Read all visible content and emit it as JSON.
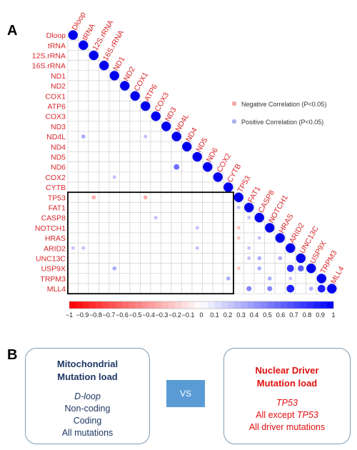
{
  "panel_a_label": "A",
  "panel_b_label": "B",
  "legend": {
    "negative": {
      "label": "Negative Correlation (P<0.05)",
      "color": "#f4aaaa"
    },
    "positive": {
      "label": "Positive Correlation (P<0.05)",
      "color": "#aab4ee"
    }
  },
  "colors": {
    "label_red": "#d8262a",
    "grid": "#cfcfcf",
    "box_border": "#000000"
  },
  "chart_data": {
    "type": "heatmap",
    "variables": [
      "Dloop",
      "tRNA",
      "12S.rRNA",
      "16S.rRNA",
      "ND1",
      "ND2",
      "COX1",
      "ATP6",
      "COX3",
      "ND3",
      "ND4L",
      "ND4",
      "ND5",
      "ND6",
      "COX2",
      "CYTB",
      "TP53",
      "FAT1",
      "CASP8",
      "NOTCH1",
      "HRAS",
      "ARID2",
      "UNC13C",
      "USP9X",
      "TRPM3",
      "MLL4"
    ],
    "display_labels": [
      "Dloop",
      "tRNA",
      "12S.rRNA",
      "16S.rRNA",
      "ND1",
      "ND2",
      "COX1",
      "ATP6",
      "COX3",
      "ND3",
      "ND4L",
      "ND4",
      "ND5",
      "ND6",
      "COX2",
      "CYTB",
      "TP53",
      "FAT1",
      "CASP8",
      "NOTCH1",
      "HRAS",
      "ARID2",
      "UNC13C",
      "USP9X",
      "TRPM3",
      "MLL4"
    ],
    "colorbar_ticks": [
      "−1",
      "−0.9",
      "−0.8",
      "−0.7",
      "−0.6",
      "−0.5",
      "−0.4",
      "−0.3",
      "−0.2",
      "−0.1",
      "0",
      "0.1",
      "0.2",
      "0.3",
      "0.4",
      "0.5",
      "0.6",
      "0.7",
      "0.8",
      "0.9",
      "1"
    ],
    "colorscale_range": [
      -1,
      1
    ],
    "cells": [
      {
        "row": 10,
        "col": 1,
        "r": 0.2
      },
      {
        "row": 10,
        "col": 7,
        "r": 0.15
      },
      {
        "row": 13,
        "col": 10,
        "r": 0.35
      },
      {
        "row": 14,
        "col": 4,
        "r": 0.15
      },
      {
        "row": 16,
        "col": 2,
        "r": -0.2
      },
      {
        "row": 16,
        "col": 7,
        "r": -0.2
      },
      {
        "row": 17,
        "col": 16,
        "r": 0.15
      },
      {
        "row": 18,
        "col": 8,
        "r": 0.15
      },
      {
        "row": 18,
        "col": 17,
        "r": 0.15
      },
      {
        "row": 19,
        "col": 12,
        "r": 0.15
      },
      {
        "row": 19,
        "col": 16,
        "r": -0.15
      },
      {
        "row": 20,
        "col": 16,
        "r": -0.15
      },
      {
        "row": 20,
        "col": 18,
        "r": 0.15
      },
      {
        "row": 21,
        "col": 0,
        "r": 0.15
      },
      {
        "row": 21,
        "col": 1,
        "r": 0.15
      },
      {
        "row": 21,
        "col": 12,
        "r": 0.15
      },
      {
        "row": 21,
        "col": 17,
        "r": 0.15
      },
      {
        "row": 22,
        "col": 17,
        "r": 0.15
      },
      {
        "row": 22,
        "col": 18,
        "r": 0.2
      },
      {
        "row": 22,
        "col": 20,
        "r": 0.2
      },
      {
        "row": 23,
        "col": 4,
        "r": 0.2
      },
      {
        "row": 23,
        "col": 16,
        "r": -0.15
      },
      {
        "row": 23,
        "col": 18,
        "r": 0.2
      },
      {
        "row": 23,
        "col": 21,
        "r": 0.5
      },
      {
        "row": 23,
        "col": 22,
        "r": 0.4
      },
      {
        "row": 24,
        "col": 15,
        "r": 0.2
      },
      {
        "row": 24,
        "col": 19,
        "r": 0.2
      },
      {
        "row": 24,
        "col": 21,
        "r": 0.15
      },
      {
        "row": 25,
        "col": 17,
        "r": 0.3
      },
      {
        "row": 25,
        "col": 19,
        "r": 0.3
      },
      {
        "row": 25,
        "col": 21,
        "r": 0.55
      },
      {
        "row": 25,
        "col": 23,
        "r": 0.2
      },
      {
        "row": 25,
        "col": 24,
        "r": 0.55
      }
    ]
  },
  "left_box": {
    "title_line1": "Mitochondrial",
    "title_line2": "Mutation load",
    "item1": "D-loop",
    "item2": "Non-coding",
    "item3": "Coding",
    "item4": "All mutations",
    "title_color": "#1f3864",
    "text_color": "#1f3864"
  },
  "vs_label": "VS",
  "right_box": {
    "title_line1": "Nuclear Driver",
    "title_line2": "Mutation load",
    "item1": "TP53",
    "item2_prefix": "All except ",
    "item2_em": "TP53",
    "item3": "All driver mutations",
    "title_color": "#e01010",
    "text_color": "#e01010"
  }
}
